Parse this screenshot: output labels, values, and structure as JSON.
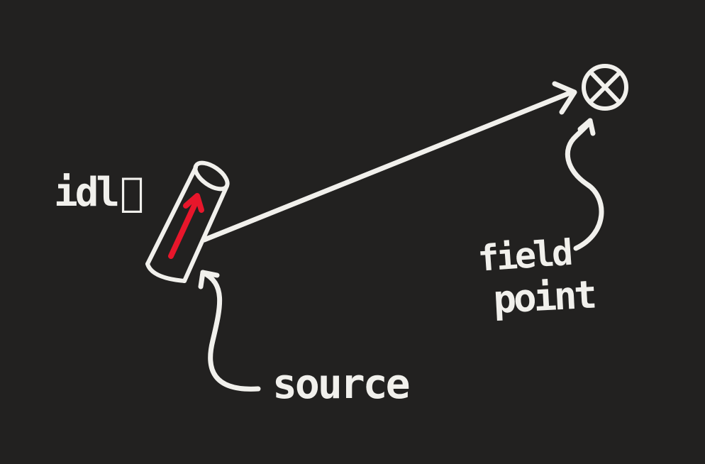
{
  "diagram": {
    "current_element_label": "idl⃗",
    "source_label": "source",
    "field_point_label_line1": "field",
    "field_point_label_line2": "point",
    "colors": {
      "background": "#222120",
      "chalk": "#f1f0ec",
      "current_arrow": "#e8162b"
    },
    "icons": {
      "field_point_marker": "circle-cross-icon",
      "wire_segment": "cylinder-icon"
    }
  }
}
